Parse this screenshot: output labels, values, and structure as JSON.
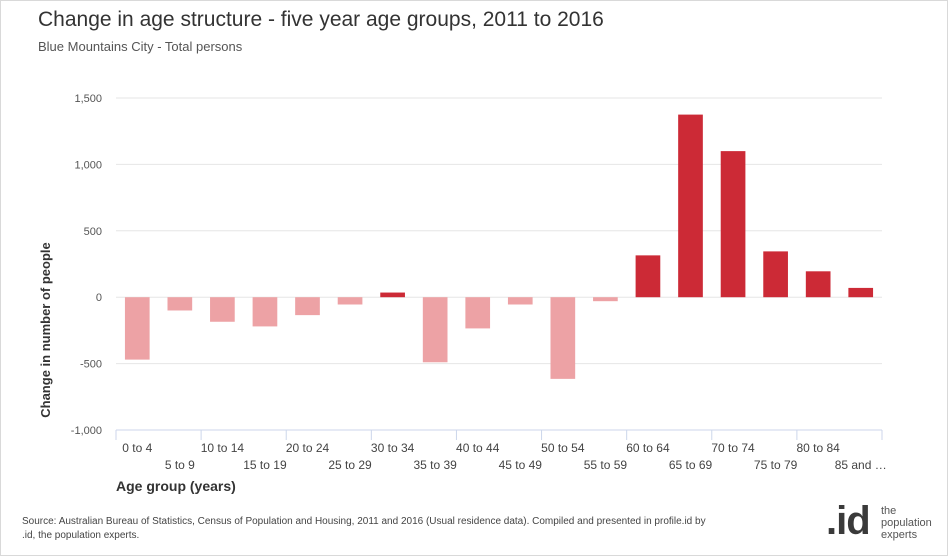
{
  "header": {
    "title": "Change in age structure - five year age groups, 2011 to 2016",
    "subtitle": "Blue Mountains City - Total persons"
  },
  "chart_data": {
    "type": "bar",
    "title": "Change in age structure - five year age groups, 2011 to 2016",
    "subtitle": "Blue Mountains City - Total persons",
    "xlabel": "Age group (years)",
    "ylabel": "Change in number of people",
    "ylim": [
      -1000,
      1500
    ],
    "yticks": [
      -1000,
      -500,
      0,
      500,
      1000,
      1500
    ],
    "ytick_labels": [
      "-1,000",
      "-500",
      "0",
      "500",
      "1,000",
      "1,500"
    ],
    "categories": [
      "0 to 4",
      "5 to 9",
      "10 to 14",
      "15 to 19",
      "20 to 24",
      "25 to 29",
      "30 to 34",
      "35 to 39",
      "40 to 44",
      "45 to 49",
      "50 to 54",
      "55 to 59",
      "60 to 64",
      "65 to 69",
      "70 to 74",
      "75 to 79",
      "80 to 84",
      "85 and …"
    ],
    "values": [
      -470,
      -100,
      -185,
      -220,
      -135,
      -55,
      35,
      -490,
      -235,
      -55,
      -615,
      -30,
      315,
      1375,
      1100,
      345,
      195,
      70
    ],
    "colors": {
      "positive": "#cc2a36",
      "negative": "#eda2a5"
    },
    "grid": true,
    "legend": "none"
  },
  "footer": {
    "source_text": "Source: Australian Bureau of Statistics, Census of Population and Housing, 2011 and 2016 (Usual residence data). Compiled and presented in profile.id by .id, the population experts.",
    "logo_mark": ".id",
    "logo_lines": [
      "the",
      "population",
      "experts"
    ]
  }
}
